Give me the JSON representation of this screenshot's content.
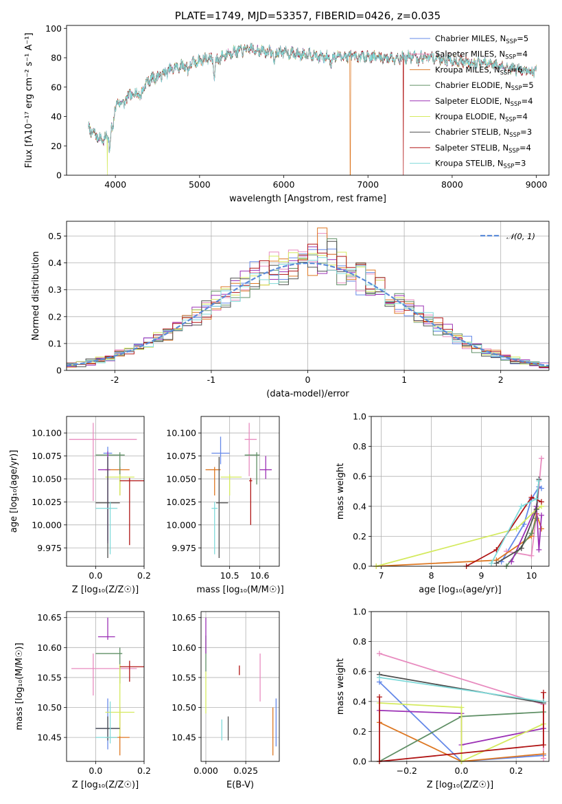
{
  "chart_data": [
    {
      "id": "spectrum",
      "type": "line",
      "title": "PLATE=1749, MJD=53357, FIBERID=0426, z=0.035",
      "xlabel": "wavelength [Angstrom, rest frame]",
      "ylabel": "Flux [fλ10⁻¹⁷ erg cm⁻² s⁻¹ A⁻¹]",
      "xlim": [
        3420,
        9150
      ],
      "ylim": [
        0,
        102
      ],
      "xticks": [
        4000,
        5000,
        6000,
        7000,
        8000,
        9000
      ],
      "yticks": [
        0,
        20,
        40,
        60,
        80,
        100
      ],
      "grid": false,
      "legend_position": "top-right",
      "continuum": {
        "x": [
          3680,
          3750,
          3850,
          3900,
          3950,
          4000,
          4100,
          4200,
          4300,
          4400,
          4500,
          4700,
          4900,
          5100,
          5200,
          5300,
          5400,
          5500,
          5600,
          5700,
          5800,
          5900,
          6000,
          6100,
          6200,
          6300,
          6400,
          6500,
          6600,
          6800,
          7000,
          7200,
          7400,
          7600,
          7800,
          8000,
          8200,
          8400,
          8600,
          8800,
          9000
        ],
        "y": [
          32,
          28,
          24,
          26,
          34,
          47,
          52,
          55,
          57,
          65,
          67,
          73,
          76,
          80,
          78,
          82,
          84,
          85,
          86,
          85,
          84,
          84,
          84,
          83,
          82,
          83,
          81,
          80,
          81,
          81,
          81,
          80,
          80,
          81,
          80,
          78,
          77,
          76,
          74,
          72,
          70
        ]
      },
      "dropouts": [
        {
          "series": "Kroupa ELODIE",
          "x": 3905
        },
        {
          "series": "Kroupa MILES",
          "x": 6790
        },
        {
          "series": "Salpeter STELIB",
          "x": 7420
        }
      ],
      "series": [
        {
          "name": "Chabrier MILES",
          "nssp": "5",
          "color": "#6488e8"
        },
        {
          "name": "Salpeter MILES",
          "nssp": "4",
          "color": "#e88bbf"
        },
        {
          "name": "Kroupa MILES",
          "nssp": "6",
          "color": "#dd7722"
        },
        {
          "name": "Chabrier ELODIE",
          "nssp": "5",
          "color": "#5f8f65"
        },
        {
          "name": "Salpeter ELODIE",
          "nssp": "4",
          "color": "#9b30b5"
        },
        {
          "name": "Kroupa ELODIE",
          "nssp": "4",
          "color": "#d4ea5e"
        },
        {
          "name": "Chabrier STELIB",
          "nssp": "3",
          "color": "#4d4d4d"
        },
        {
          "name": "Salpeter STELIB",
          "nssp": "4",
          "color": "#b01414"
        },
        {
          "name": "Kroupa STELIB",
          "nssp": "3",
          "color": "#7fdada"
        }
      ]
    },
    {
      "id": "residuals",
      "type": "line",
      "xlabel": "(data-model)/error",
      "ylabel": "Normed distribution",
      "xlim": [
        -2.5,
        2.5
      ],
      "ylim": [
        0,
        0.555
      ],
      "xticks": [
        -2,
        -1,
        0,
        1,
        2
      ],
      "yticks": [
        0.0,
        0.1,
        0.2,
        0.3,
        0.4,
        0.5
      ],
      "grid": true,
      "legend_position": "top-right",
      "legend_label": "𝒩(0, 1)",
      "gaussian_color": "#5a8ad8",
      "bin_width": 0.1,
      "peak_values": [
        0.45,
        0.51,
        0.53,
        0.49,
        0.46,
        0.44,
        0.48,
        0.47,
        0.42
      ],
      "peak_bins": [
        0.05,
        0.15,
        0.15,
        0.25,
        0.05,
        0.35,
        0.25,
        0.05,
        0.15
      ]
    },
    {
      "id": "age_vs_Z",
      "type": "scatter",
      "xlabel": "Z [log₁₀(Z/Z☉)]",
      "ylabel": "age  [log₁₀(age/yr)]",
      "xlim": [
        -0.12,
        0.2
      ],
      "ylim": [
        9.955,
        10.118
      ],
      "xticks": [
        "0.0",
        "0.2"
      ],
      "yticks": [
        "9.975",
        "10.000",
        "10.025",
        "10.050",
        "10.075",
        "10.100"
      ],
      "grid": true,
      "points": [
        {
          "series": "Chabrier MILES",
          "x": 0.05,
          "y": 10.078,
          "xerr": [
            0.018,
            0.018
          ],
          "yerr": [
            0.095,
            0.007
          ]
        },
        {
          "series": "Salpeter MILES",
          "x": -0.01,
          "y": 10.093,
          "xerr": [
            0.1,
            0.18
          ],
          "yerr": [
            0.067,
            0.018
          ]
        },
        {
          "series": "Kroupa MILES",
          "x": 0.1,
          "y": 10.06,
          "xerr": [
            0.06,
            0.04
          ],
          "yerr": [
            0.028,
            0.003
          ]
        },
        {
          "series": "Chabrier ELODIE",
          "x": 0.1,
          "y": 10.076,
          "xerr": [
            0.1,
            0.02
          ],
          "yerr": [
            0.032,
            0.003
          ]
        },
        {
          "series": "Salpeter ELODIE",
          "x": 0.05,
          "y": 10.06,
          "xerr": [
            0.04,
            0.01
          ],
          "yerr": [
            0.08,
            0.02
          ]
        },
        {
          "series": "Kroupa ELODIE",
          "x": 0.1,
          "y": 10.052,
          "xerr": [
            0.06,
            0.06
          ],
          "yerr": [
            0.02,
            0.003
          ]
        },
        {
          "series": "Chabrier STELIB",
          "x": 0.05,
          "y": 10.024,
          "xerr": [
            0.05,
            0.05
          ],
          "yerr": [
            0.06,
            0.05
          ]
        },
        {
          "series": "Salpeter STELIB",
          "x": 0.14,
          "y": 10.048,
          "xerr": [
            0.04,
            0.06
          ],
          "yerr": [
            0.07,
            0.003
          ]
        },
        {
          "series": "Kroupa STELIB",
          "x": 0.06,
          "y": 10.018,
          "xerr": [
            0.06,
            0.03
          ],
          "yerr": [
            0.05,
            0.007
          ]
        }
      ]
    },
    {
      "id": "age_vs_mass",
      "type": "scatter",
      "xlabel": "mass [log₁₀(M/M☉)]",
      "xlim": [
        10.405,
        10.665
      ],
      "ylim": [
        9.955,
        10.118
      ],
      "xticks": [
        "10.5",
        "10.6"
      ],
      "yticks": [
        "9.975",
        "10.000",
        "10.025",
        "10.050",
        "10.075",
        "10.100"
      ],
      "grid": true,
      "points": [
        {
          "series": "Chabrier MILES",
          "x": 10.47,
          "y": 10.078,
          "xerr": [
            0.03,
            0.03
          ],
          "yerr": [
            0.012,
            0.018
          ]
        },
        {
          "series": "Salpeter MILES",
          "x": 10.565,
          "y": 10.093,
          "xerr": [
            0.015,
            0.025
          ],
          "yerr": [
            0.04,
            0.018
          ]
        },
        {
          "series": "Kroupa MILES",
          "x": 10.45,
          "y": 10.06,
          "xerr": [
            0.03,
            0.02
          ],
          "yerr": [
            0.028,
            0.003
          ]
        },
        {
          "series": "Chabrier ELODIE",
          "x": 10.59,
          "y": 10.076,
          "xerr": [
            0.04,
            0.01
          ],
          "yerr": [
            0.032,
            0.003
          ]
        },
        {
          "series": "Salpeter ELODIE",
          "x": 10.62,
          "y": 10.06,
          "xerr": [
            0.02,
            0.02
          ],
          "yerr": [
            0.01,
            0.015
          ]
        },
        {
          "series": "Kroupa ELODIE",
          "x": 10.5,
          "y": 10.052,
          "xerr": [
            0.03,
            0.04
          ],
          "yerr": [
            0.02,
            0.003
          ]
        },
        {
          "series": "Chabrier STELIB",
          "x": 10.465,
          "y": 10.024,
          "xerr": [
            0.01,
            0.03
          ],
          "yerr": [
            0.06,
            0.05
          ]
        },
        {
          "series": "Salpeter STELIB",
          "x": 10.57,
          "y": 10.048,
          "xerr": [
            0.005,
            0.005
          ],
          "yerr": [
            0.048,
            0.003
          ]
        },
        {
          "series": "Kroupa STELIB",
          "x": 10.45,
          "y": 10.018,
          "xerr": [
            0.01,
            0.01
          ],
          "yerr": [
            0.05,
            0.007
          ]
        }
      ]
    },
    {
      "id": "mass_weight_vs_age",
      "type": "line",
      "xlabel": "age  [log₁₀(age/yr)]",
      "ylabel": "mass weight",
      "xlim": [
        6.8,
        10.35
      ],
      "ylim": [
        0,
        1.0
      ],
      "xticks": [
        7,
        8,
        9,
        10
      ],
      "yticks": [
        "0.0",
        "0.2",
        "0.4",
        "0.6",
        "0.8",
        "1.0"
      ],
      "grid": true,
      "series": [
        {
          "name": "Chabrier MILES",
          "x": [
            9.4,
            9.85,
            10.0,
            10.15,
            10.2
          ],
          "y": [
            0.03,
            0.28,
            0.45,
            0.53,
            0.52
          ]
        },
        {
          "name": "Salpeter MILES",
          "x": [
            9.5,
            10.0,
            10.1,
            10.2
          ],
          "y": [
            0.1,
            0.07,
            0.35,
            0.72
          ]
        },
        {
          "name": "Kroupa MILES",
          "x": [
            6.9,
            9.3,
            10.0,
            10.1,
            10.2
          ],
          "y": [
            0.0,
            0.04,
            0.2,
            0.35,
            0.25
          ]
        },
        {
          "name": "Chabrier ELODIE",
          "x": [
            9.5,
            10.0,
            10.1
          ],
          "y": [
            0.0,
            0.22,
            0.32
          ]
        },
        {
          "name": "Salpeter ELODIE",
          "x": [
            9.6,
            10.1,
            10.15,
            10.2
          ],
          "y": [
            0.03,
            0.4,
            0.11,
            0.34
          ]
        },
        {
          "name": "Kroupa ELODIE",
          "x": [
            6.9,
            9.7,
            10.1,
            10.2
          ],
          "y": [
            0.0,
            0.25,
            0.38,
            0.4
          ]
        },
        {
          "name": "Chabrier STELIB",
          "x": [
            9.3,
            9.8,
            10.1,
            10.15
          ],
          "y": [
            0.02,
            0.12,
            0.38,
            0.58
          ]
        },
        {
          "name": "Salpeter STELIB",
          "x": [
            8.7,
            9.3,
            10.0,
            10.2
          ],
          "y": [
            0.0,
            0.11,
            0.46,
            0.43
          ]
        },
        {
          "name": "Kroupa STELIB",
          "x": [
            9.2,
            9.8,
            10.1,
            10.15
          ],
          "y": [
            0.02,
            0.4,
            0.45,
            0.57
          ]
        }
      ]
    },
    {
      "id": "mass_vs_Z",
      "type": "scatter",
      "xlabel": "Z [log₁₀(Z/Z☉)]",
      "ylabel": "mass [log₁₀(M/M☉)]",
      "xlim": [
        -0.12,
        0.2
      ],
      "ylim": [
        10.41,
        10.66
      ],
      "xticks": [
        "0.0",
        "0.2"
      ],
      "yticks": [
        "10.45",
        "10.50",
        "10.55",
        "10.60",
        "10.65"
      ],
      "grid": true,
      "points": [
        {
          "series": "Chabrier MILES",
          "x": 0.05,
          "y": 10.465,
          "xerr": [
            0.05,
            0.05
          ],
          "yerr": [
            0.035,
            0.05
          ]
        },
        {
          "series": "Salpeter MILES",
          "x": -0.01,
          "y": 10.565,
          "xerr": [
            0.09,
            0.18
          ],
          "yerr": [
            0.045,
            0.025
          ]
        },
        {
          "series": "Kroupa MILES",
          "x": 0.1,
          "y": 10.45,
          "xerr": [
            0.06,
            0.04
          ],
          "yerr": [
            0.03,
            0.05
          ]
        },
        {
          "series": "Chabrier ELODIE",
          "x": 0.1,
          "y": 10.59,
          "xerr": [
            0.1,
            0.01
          ],
          "yerr": [
            0.05,
            0.01
          ]
        },
        {
          "series": "Salpeter ELODIE",
          "x": 0.05,
          "y": 10.618,
          "xerr": [
            0.04,
            0.03
          ],
          "yerr": [
            0.005,
            0.032
          ]
        },
        {
          "series": "Kroupa ELODIE",
          "x": 0.1,
          "y": 10.492,
          "xerr": [
            0.06,
            0.06
          ],
          "yerr": [
            0.04,
            0.08
          ]
        },
        {
          "series": "Chabrier STELIB",
          "x": 0.05,
          "y": 10.465,
          "xerr": [
            0.05,
            0.05
          ],
          "yerr": [
            0.02,
            0.02
          ]
        },
        {
          "series": "Salpeter STELIB",
          "x": 0.14,
          "y": 10.568,
          "xerr": [
            0.04,
            0.06
          ],
          "yerr": [
            0.025,
            0.01
          ]
        },
        {
          "series": "Kroupa STELIB",
          "x": 0.06,
          "y": 10.45,
          "xerr": [
            0.06,
            0.03
          ],
          "yerr": [
            0.01,
            0.06
          ]
        }
      ]
    },
    {
      "id": "mass_vs_ebv",
      "type": "scatter",
      "xlabel": "E(B-V)",
      "xlim": [
        -0.003,
        0.046
      ],
      "ylim": [
        10.41,
        10.66
      ],
      "xticks": [
        "0.000",
        "0.025"
      ],
      "yticks": [
        "10.45",
        "10.50",
        "10.55",
        "10.60",
        "10.65"
      ],
      "grid": true,
      "points": [
        {
          "series": "Chabrier MILES",
          "x": 0.044,
          "y": 10.475,
          "xerr": [
            0,
            0
          ],
          "yerr": [
            0.04,
            0.04
          ]
        },
        {
          "series": "Salpeter MILES",
          "x": 0.034,
          "y": 10.55,
          "xerr": [
            0,
            0
          ],
          "yerr": [
            0.04,
            0.04
          ]
        },
        {
          "series": "Kroupa MILES",
          "x": 0.042,
          "y": 10.46,
          "xerr": [
            0,
            0
          ],
          "yerr": [
            0.04,
            0.04
          ]
        },
        {
          "series": "Chabrier ELODIE",
          "x": 0.0,
          "y": 10.6,
          "xerr": [
            0,
            0
          ],
          "yerr": [
            0.04,
            0.02
          ]
        },
        {
          "series": "Salpeter ELODIE",
          "x": 0.0,
          "y": 10.62,
          "xerr": [
            0,
            0
          ],
          "yerr": [
            0.03,
            0.03
          ]
        },
        {
          "series": "Kroupa ELODIE",
          "x": 0.0,
          "y": 10.53,
          "xerr": [
            0,
            0
          ],
          "yerr": [
            0.04,
            0.03
          ]
        },
        {
          "series": "Chabrier STELIB",
          "x": 0.014,
          "y": 10.465,
          "xerr": [
            0,
            0
          ],
          "yerr": [
            0.02,
            0.02
          ]
        },
        {
          "series": "Salpeter STELIB",
          "x": 0.021,
          "y": 10.562,
          "xerr": [
            0,
            0
          ],
          "yerr": [
            0.008,
            0.008
          ]
        },
        {
          "series": "Kroupa STELIB",
          "x": 0.01,
          "y": 10.465,
          "xerr": [
            0,
            0
          ],
          "yerr": [
            0.02,
            0.015
          ]
        }
      ]
    },
    {
      "id": "mass_weight_vs_Z",
      "type": "line",
      "xlabel": "Z [log₁₀(Z/Z☉)]",
      "ylabel": "mass weight",
      "xlim": [
        -0.33,
        0.32
      ],
      "ylim": [
        0,
        1.0
      ],
      "xticks": [
        "−0.2",
        "0.0",
        "0.2"
      ],
      "yticks": [
        "0.0",
        "0.2",
        "0.4",
        "0.6",
        "0.8",
        "1.0"
      ],
      "grid": true,
      "series": [
        {
          "name": "Chabrier MILES",
          "x": [
            -0.3,
            0.0,
            0.3
          ],
          "y": [
            0.53,
            0.0,
            0.04
          ]
        },
        {
          "name": "Salpeter MILES",
          "x": [
            -0.3,
            0.3,
            0.3
          ],
          "y": [
            0.72,
            0.38,
            0.02
          ]
        },
        {
          "name": "Kroupa MILES",
          "x": [
            -0.3,
            0.0,
            0.3
          ],
          "y": [
            0.26,
            0.0,
            0.05
          ]
        },
        {
          "name": "Chabrier ELODIE",
          "x": [
            -0.3,
            0.0,
            0.3
          ],
          "y": [
            0.0,
            0.3,
            0.33
          ]
        },
        {
          "name": "Salpeter ELODIE",
          "x": [
            -0.3,
            0.0,
            0.0,
            0.3
          ],
          "y": [
            0.34,
            0.32,
            0.11,
            0.22
          ]
        },
        {
          "name": "Kroupa ELODIE",
          "x": [
            -0.3,
            0.0,
            0.0,
            0.3
          ],
          "y": [
            0.39,
            0.36,
            0.0,
            0.25
          ]
        },
        {
          "name": "Chabrier STELIB",
          "x": [
            -0.3,
            0.3
          ],
          "y": [
            0.58,
            0.39
          ]
        },
        {
          "name": "Salpeter STELIB",
          "x": [
            -0.3,
            -0.3,
            0.3,
            0.3
          ],
          "y": [
            0.43,
            0.0,
            0.11,
            0.46
          ]
        },
        {
          "name": "Kroupa STELIB",
          "x": [
            -0.3,
            0.3
          ],
          "y": [
            0.56,
            0.4
          ]
        }
      ]
    }
  ]
}
